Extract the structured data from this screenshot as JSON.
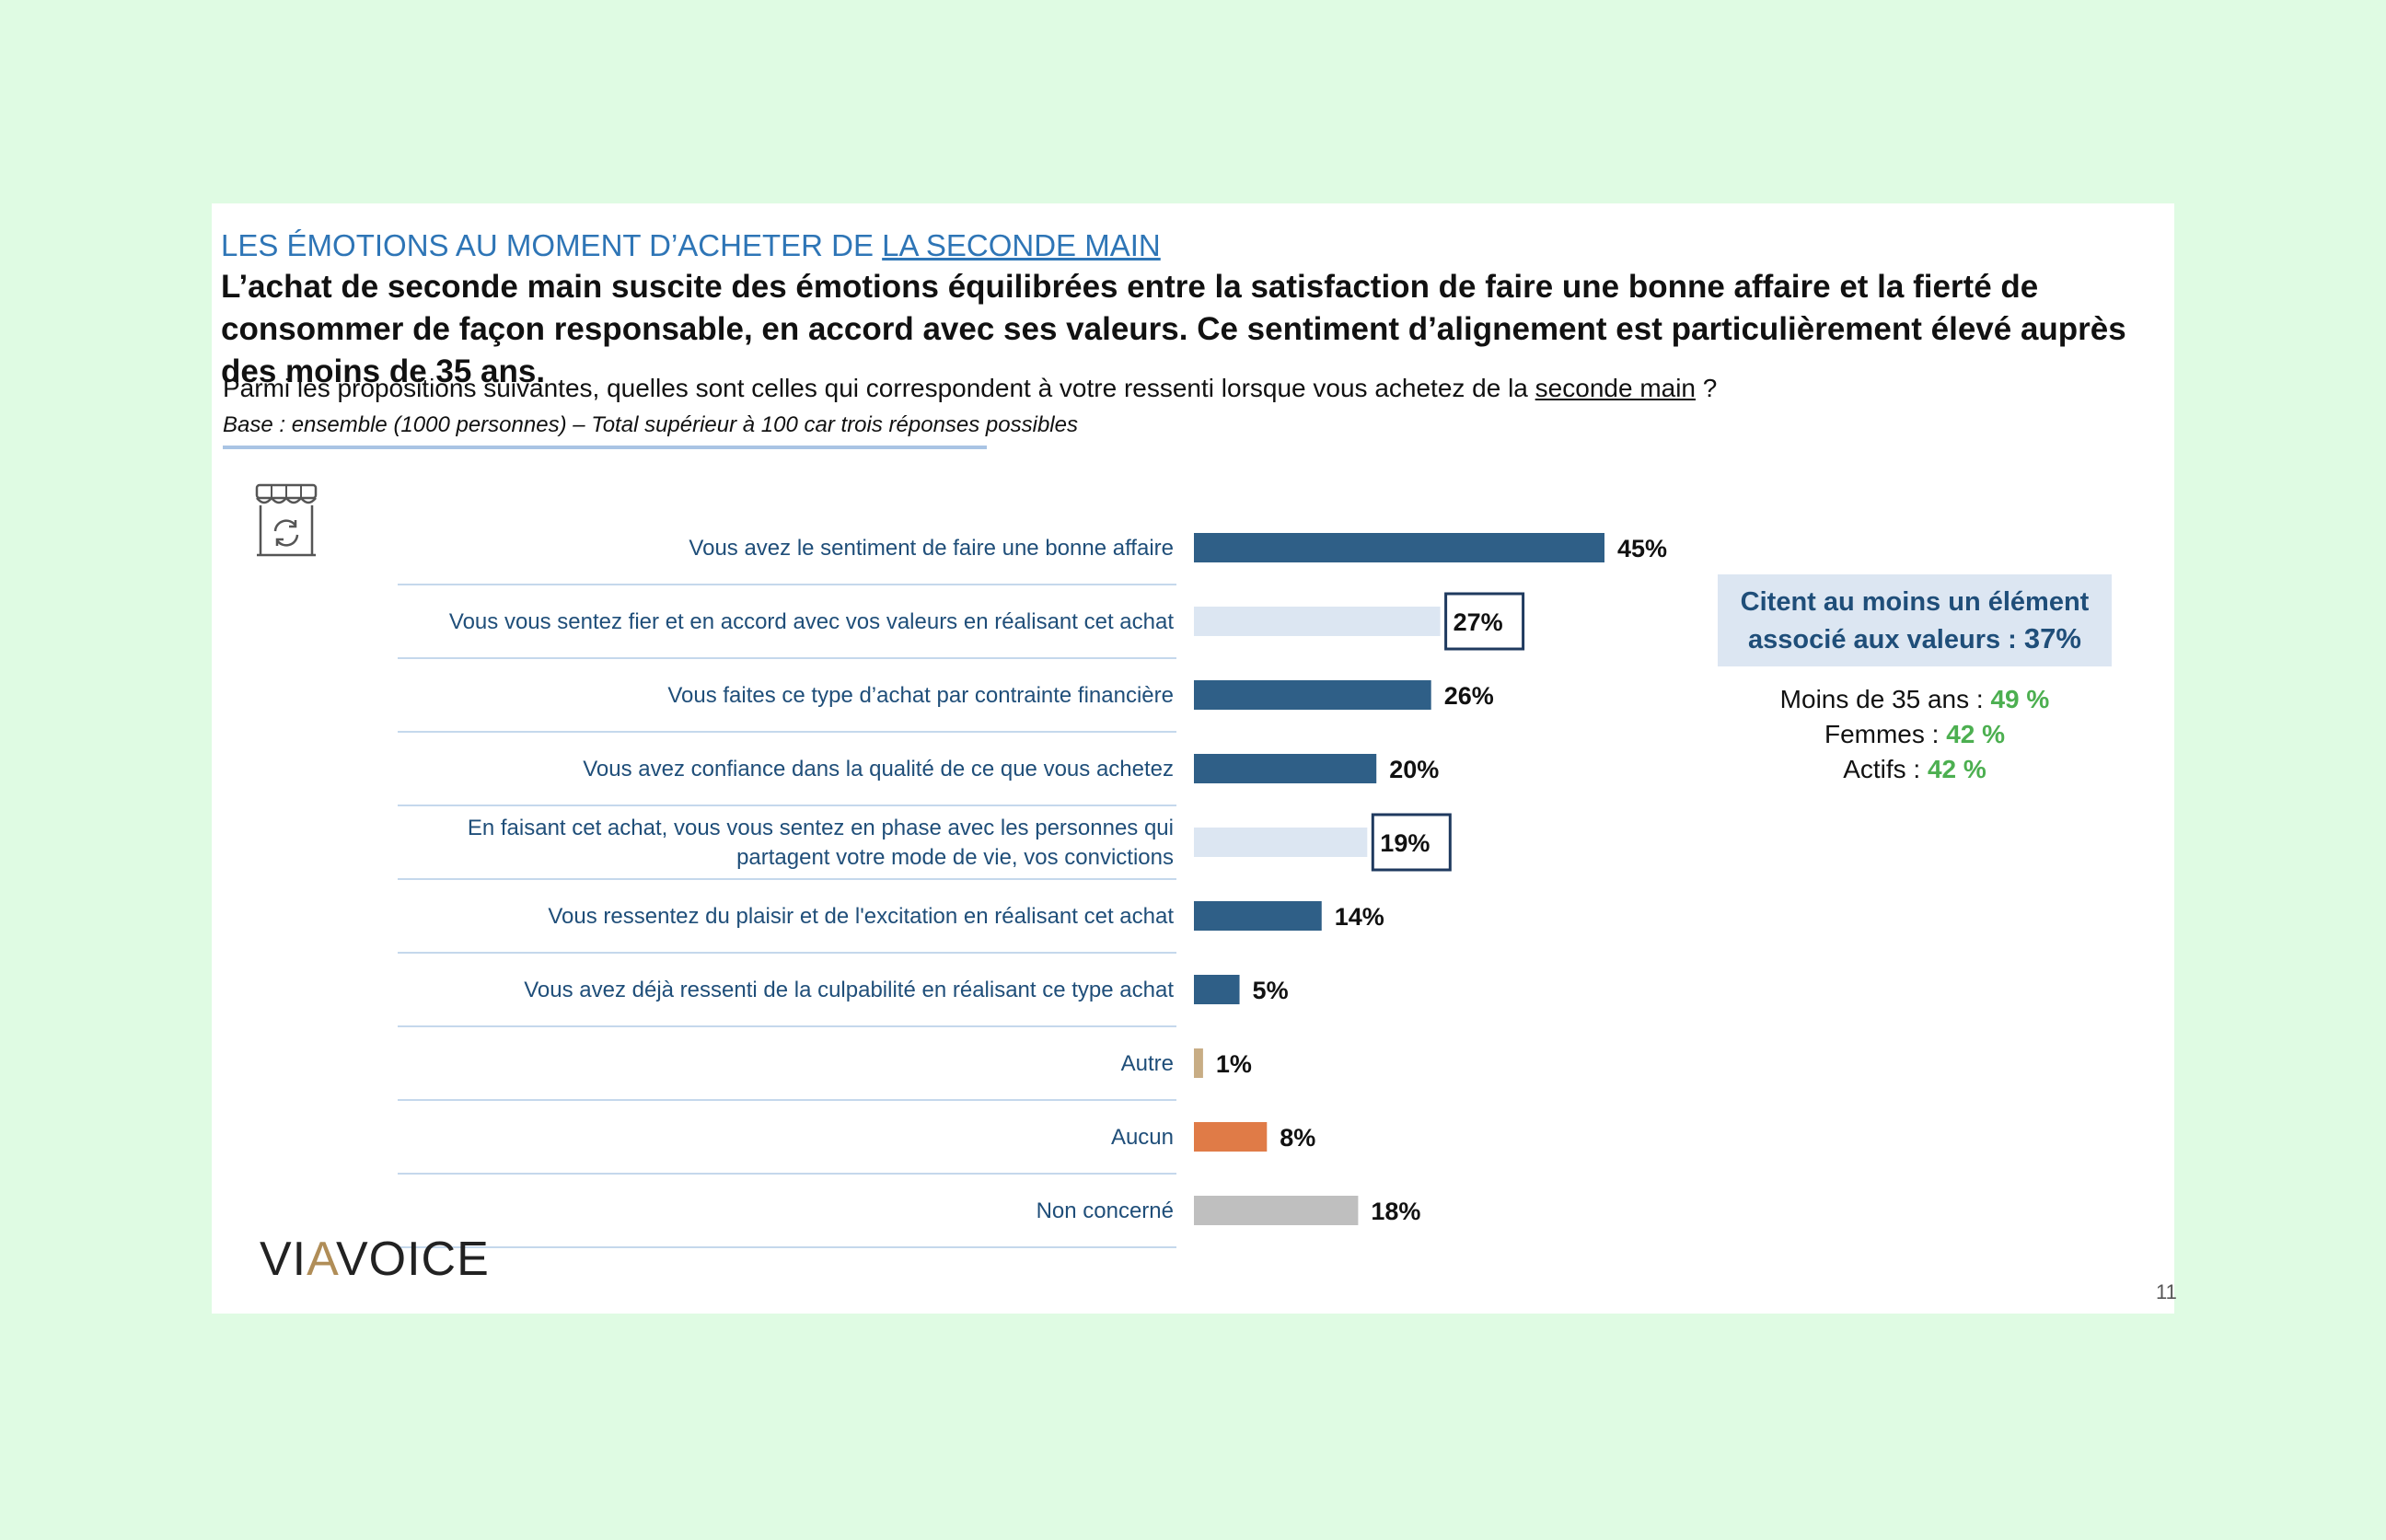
{
  "header": {
    "kicker_prefix": "LES ÉMOTIONS AU MOMENT D’ACHETER DE ",
    "kicker_underlined": "LA SECONDE MAIN",
    "headline": "L’achat de seconde main suscite des émotions équilibrées entre la satisfaction de faire une bonne affaire et la fierté de consommer de façon responsable, en accord avec ses valeurs. Ce sentiment d’alignement est particulièrement élevé auprès des moins de 35 ans."
  },
  "question": {
    "prefix": "Parmi les propositions suivantes, quelles sont celles qui correspondent à votre ressenti lorsque vous achetez de la ",
    "underlined": "seconde main",
    "suffix": " ?",
    "base": "Base : ensemble (1000 personnes) – Total supérieur à 100 car trois réponses possibles"
  },
  "icons": {
    "shop": "shop-refresh-icon"
  },
  "chart_data": {
    "type": "bar",
    "orientation": "horizontal",
    "categories": [
      "Vous avez le sentiment de faire une bonne affaire",
      "Vous vous sentez fier et en accord avec vos valeurs en réalisant cet achat",
      "Vous faites ce type d’achat par contrainte financière",
      "Vous avez confiance dans la qualité de ce que vous achetez",
      "En faisant cet achat, vous vous sentez en phase avec les personnes qui partagent votre mode de vie, vos convictions",
      "Vous ressentez du plaisir et de l'excitation en réalisant cet achat",
      "Vous avez déjà ressenti de la culpabilité en réalisant ce type achat",
      "Autre",
      "Aucun",
      "Non concerné"
    ],
    "label_lines": [
      [
        "Vous avez le sentiment de faire une bonne affaire"
      ],
      [
        "Vous vous sentez fier et en accord avec vos valeurs en réalisant cet achat"
      ],
      [
        "Vous faites ce type d’achat par contrainte financière"
      ],
      [
        "Vous avez confiance dans la qualité de ce que vous achetez"
      ],
      [
        "En faisant cet achat, vous vous sentez en phase avec les personnes qui",
        "partagent votre mode de vie, vos convictions"
      ],
      [
        "Vous ressentez du plaisir et de l'excitation en réalisant cet achat"
      ],
      [
        "Vous avez déjà ressenti de la culpabilité en réalisant ce type achat"
      ],
      [
        "Autre"
      ],
      [
        "Aucun"
      ],
      [
        "Non concerné"
      ]
    ],
    "values": [
      45,
      27,
      26,
      20,
      19,
      14,
      5,
      1,
      8,
      18
    ],
    "value_labels": [
      "45%",
      "27%",
      "26%",
      "20%",
      "19%",
      "14%",
      "5%",
      "1%",
      "8%",
      "18%"
    ],
    "colors": [
      "#2f5f87",
      "#dce6f2",
      "#2f5f87",
      "#2f5f87",
      "#dce6f2",
      "#2f5f87",
      "#2f5f87",
      "#c8ad85",
      "#e07b47",
      "#bfbfbf"
    ],
    "boxed": [
      false,
      true,
      false,
      false,
      true,
      false,
      false,
      false,
      false,
      false
    ],
    "xlim": [
      0,
      100
    ],
    "title": "",
    "xlabel": "",
    "ylabel": ""
  },
  "callout": {
    "line1": "Citent au moins un élément",
    "line2_prefix": "associé aux valeurs : ",
    "line2_value": "37%",
    "segments": [
      {
        "label": "Moins de 35 ans : ",
        "value": "49 %"
      },
      {
        "label": "Femmes : ",
        "value": "42 %"
      },
      {
        "label": "Actifs : ",
        "value": "42 %"
      }
    ]
  },
  "footer": {
    "logo_part1": "VI",
    "logo_accent": "A",
    "logo_part2": "VOICE",
    "page_number": "11"
  },
  "colors": {
    "background": "#dffbe3",
    "kicker": "#2e75b6",
    "highlight": "#4caf50",
    "label": "#1f4e79"
  }
}
